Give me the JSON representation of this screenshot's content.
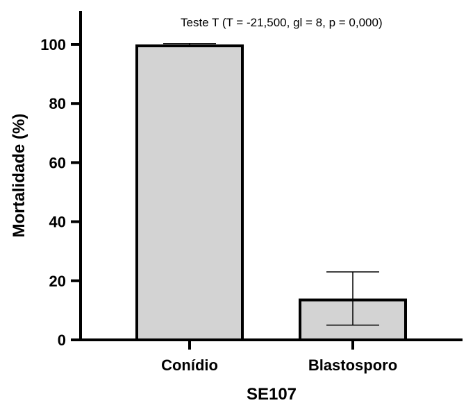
{
  "chart_data": {
    "type": "bar",
    "title": "",
    "annotation": "Teste T (T = -21,500, gl  = 8, p = 0,000)",
    "xlabel": "SE107",
    "ylabel": "Mortalidade (%)",
    "categories": [
      "Conídio",
      "Blastosporo"
    ],
    "values": [
      99.5,
      13.5
    ],
    "error_low": [
      99.5,
      5
    ],
    "error_high": [
      100.3,
      23
    ],
    "ylim": [
      0,
      110
    ],
    "yticks": [
      0,
      20,
      40,
      60,
      80,
      100
    ],
    "bar_color": "#d3d3d3",
    "grid": false
  }
}
